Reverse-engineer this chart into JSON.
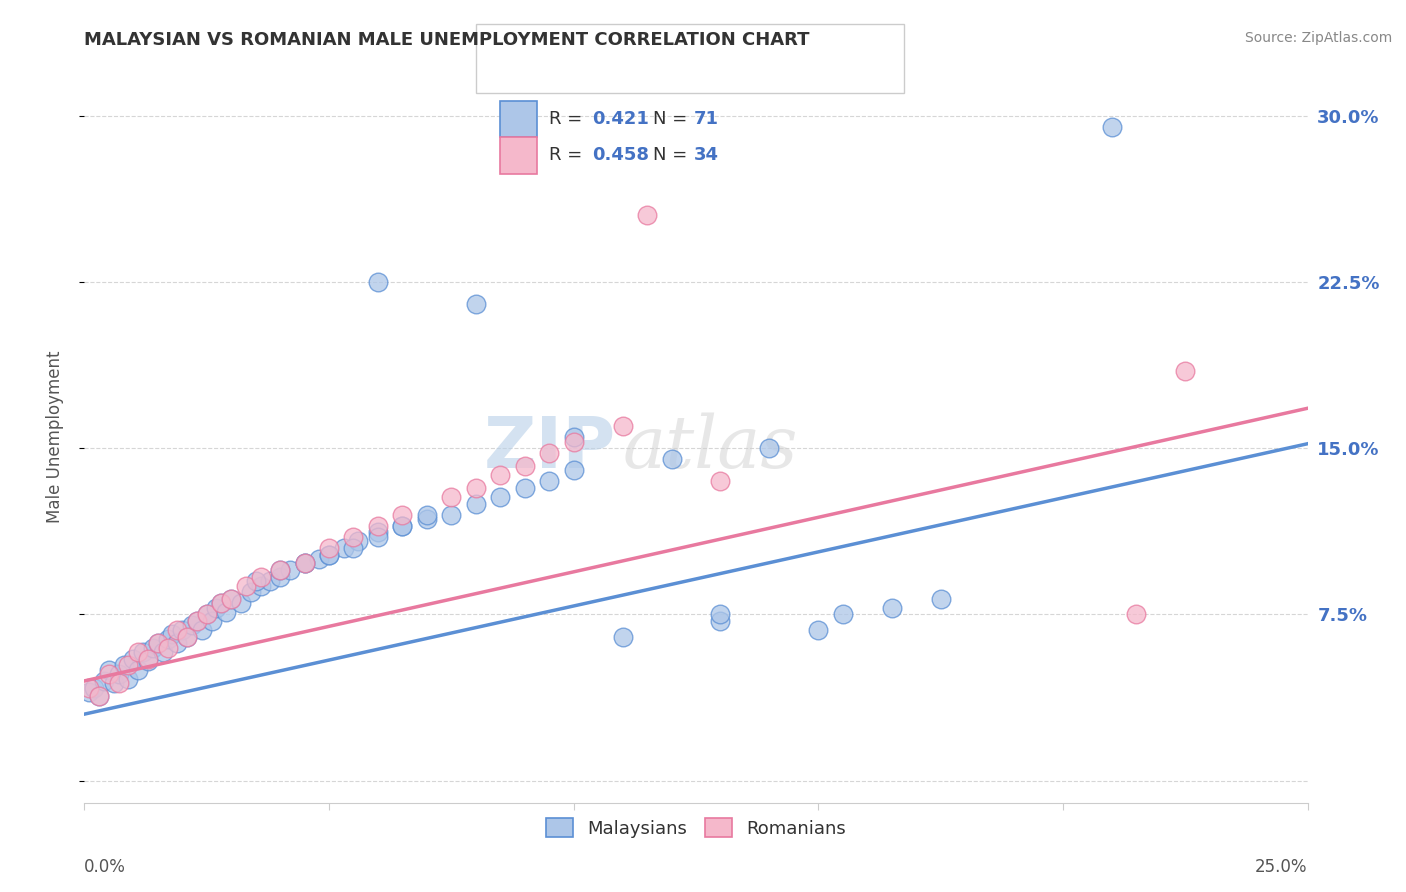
{
  "title": "MALAYSIAN VS ROMANIAN MALE UNEMPLOYMENT CORRELATION CHART",
  "source": "Source: ZipAtlas.com",
  "ylabel": "Male Unemployment",
  "watermark_zip": "ZIP",
  "watermark_atlas": "atlas",
  "legend_items": [
    {
      "label": "Malaysians",
      "R": 0.421,
      "N": 71,
      "face_color": "#adc6e8",
      "edge_color": "#5b8fd4"
    },
    {
      "label": "Romanians",
      "R": 0.458,
      "N": 34,
      "face_color": "#f5b8cb",
      "edge_color": "#e8799f"
    }
  ],
  "right_yticklabels": [
    "",
    "7.5%",
    "15.0%",
    "22.5%",
    "30.0%"
  ],
  "right_ytick_vals": [
    0.0,
    0.075,
    0.15,
    0.225,
    0.3
  ],
  "xlim": [
    0.0,
    0.25
  ],
  "ylim": [
    -0.01,
    0.32
  ],
  "background_color": "#ffffff",
  "grid_color": "#cccccc",
  "blue_line_start_y": 0.03,
  "blue_line_end_y": 0.152,
  "pink_line_start_y": 0.045,
  "pink_line_end_y": 0.168,
  "malaysian_x": [
    0.001,
    0.002,
    0.003,
    0.004,
    0.005,
    0.006,
    0.007,
    0.008,
    0.009,
    0.01,
    0.011,
    0.012,
    0.013,
    0.014,
    0.015,
    0.016,
    0.017,
    0.018,
    0.019,
    0.02,
    0.021,
    0.022,
    0.023,
    0.024,
    0.025,
    0.026,
    0.027,
    0.028,
    0.029,
    0.03,
    0.032,
    0.034,
    0.036,
    0.038,
    0.04,
    0.042,
    0.045,
    0.048,
    0.05,
    0.053,
    0.056,
    0.06,
    0.065,
    0.07,
    0.075,
    0.08,
    0.085,
    0.09,
    0.095,
    0.1,
    0.035,
    0.04,
    0.045,
    0.05,
    0.055,
    0.06,
    0.065,
    0.07,
    0.11,
    0.13,
    0.15,
    0.155,
    0.165,
    0.175,
    0.12,
    0.14,
    0.1,
    0.13,
    0.21,
    0.06,
    0.08
  ],
  "malaysian_y": [
    0.04,
    0.042,
    0.038,
    0.045,
    0.05,
    0.044,
    0.048,
    0.052,
    0.046,
    0.055,
    0.05,
    0.058,
    0.054,
    0.06,
    0.062,
    0.058,
    0.064,
    0.066,
    0.062,
    0.068,
    0.065,
    0.07,
    0.072,
    0.068,
    0.075,
    0.072,
    0.078,
    0.08,
    0.076,
    0.082,
    0.08,
    0.085,
    0.088,
    0.09,
    0.092,
    0.095,
    0.098,
    0.1,
    0.102,
    0.105,
    0.108,
    0.112,
    0.115,
    0.118,
    0.12,
    0.125,
    0.128,
    0.132,
    0.135,
    0.14,
    0.09,
    0.095,
    0.098,
    0.102,
    0.105,
    0.11,
    0.115,
    0.12,
    0.065,
    0.072,
    0.068,
    0.075,
    0.078,
    0.082,
    0.145,
    0.15,
    0.155,
    0.075,
    0.295,
    0.225,
    0.215
  ],
  "romanian_x": [
    0.001,
    0.003,
    0.005,
    0.007,
    0.009,
    0.011,
    0.013,
    0.015,
    0.017,
    0.019,
    0.021,
    0.023,
    0.025,
    0.028,
    0.03,
    0.033,
    0.036,
    0.04,
    0.045,
    0.05,
    0.055,
    0.06,
    0.065,
    0.075,
    0.08,
    0.085,
    0.09,
    0.095,
    0.1,
    0.11,
    0.115,
    0.13,
    0.215,
    0.225
  ],
  "romanian_y": [
    0.042,
    0.038,
    0.048,
    0.044,
    0.052,
    0.058,
    0.055,
    0.062,
    0.06,
    0.068,
    0.065,
    0.072,
    0.075,
    0.08,
    0.082,
    0.088,
    0.092,
    0.095,
    0.098,
    0.105,
    0.11,
    0.115,
    0.12,
    0.128,
    0.132,
    0.138,
    0.142,
    0.148,
    0.153,
    0.16,
    0.255,
    0.135,
    0.075,
    0.185
  ]
}
